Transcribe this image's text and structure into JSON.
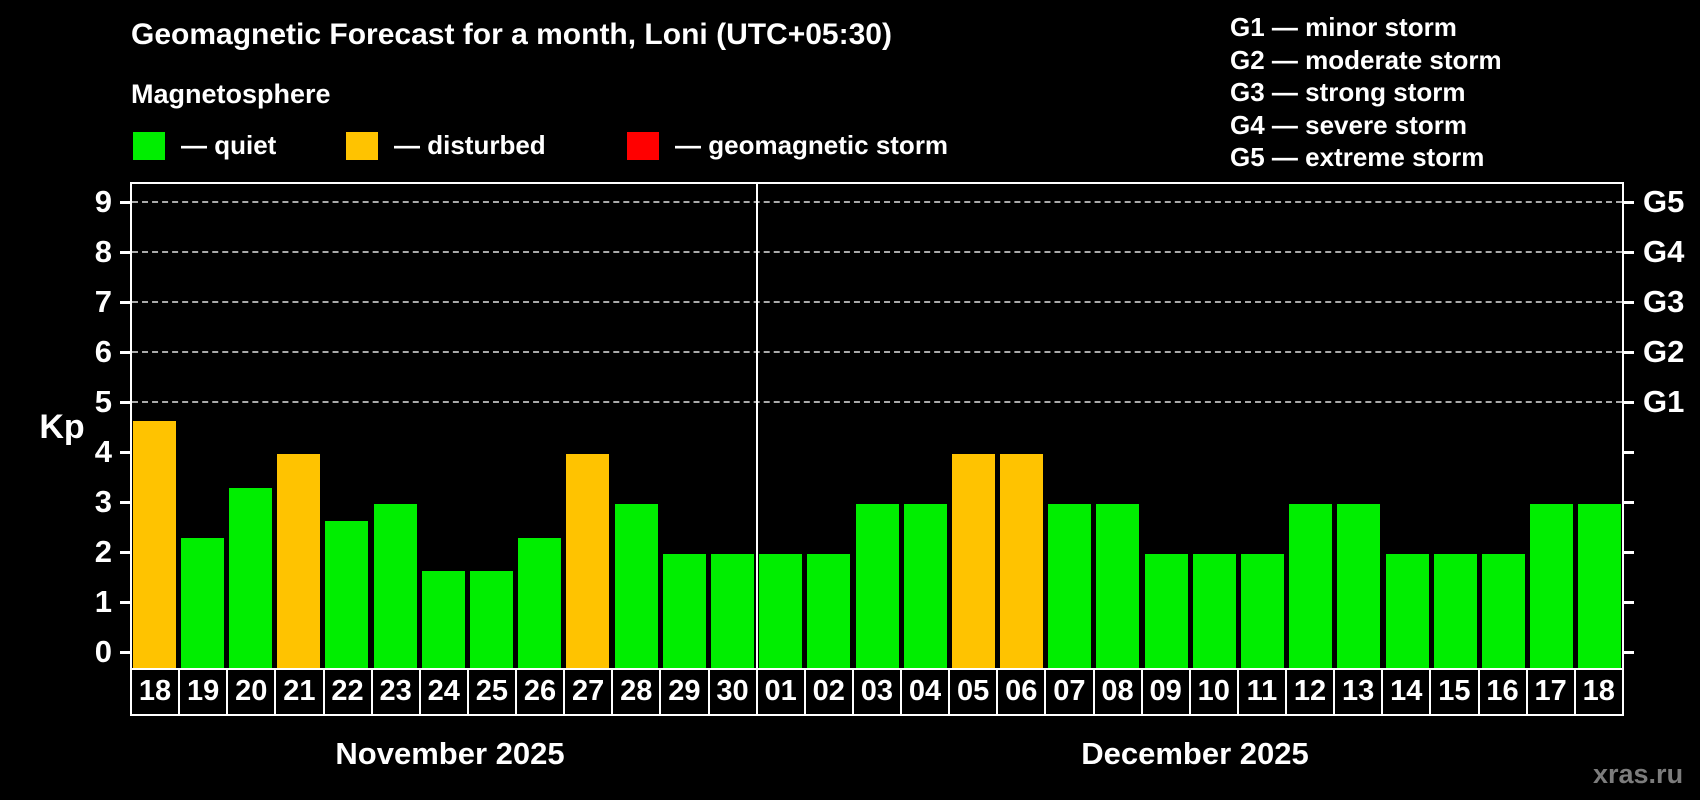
{
  "title": "Geomagnetic Forecast for a month, Loni (UTC+05:30)",
  "subtitle": "Magnetosphere",
  "legend": {
    "items": [
      {
        "key": "quiet",
        "label": "— quiet",
        "color": "#00ee00"
      },
      {
        "key": "disturbed",
        "label": "— disturbed",
        "color": "#ffc300"
      },
      {
        "key": "storm",
        "label": "— geomagnetic storm",
        "color": "#ff0000"
      }
    ]
  },
  "g_legend": [
    "G1 — minor storm",
    "G2 — moderate storm",
    "G3 — strong storm",
    "G4 — severe storm",
    "G5 — extreme storm"
  ],
  "watermark": "xras.ru",
  "chart_data": {
    "type": "bar",
    "title": "Geomagnetic Forecast for a month, Loni (UTC+05:30)",
    "ylabel": "Kp",
    "ylim": [
      0,
      9.4
    ],
    "yticks": [
      0,
      1,
      2,
      3,
      4,
      5,
      6,
      7,
      8,
      9
    ],
    "gridlines_at": [
      5,
      6,
      7,
      8,
      9
    ],
    "grid_style": "dashed horizontal lines at G-storm levels only",
    "legend_position": "top-left",
    "right_axis": [
      {
        "label": "G1",
        "kp": 5
      },
      {
        "label": "G2",
        "kp": 6
      },
      {
        "label": "G3",
        "kp": 7
      },
      {
        "label": "G4",
        "kp": 8
      },
      {
        "label": "G5",
        "kp": 9
      }
    ],
    "status_colors": {
      "quiet": "#00ee00",
      "disturbed": "#ffc300",
      "storm": "#ff0000"
    },
    "months": [
      {
        "label": "November 2025",
        "bars": [
          {
            "day": "18",
            "kp": 4.67,
            "status": "disturbed"
          },
          {
            "day": "19",
            "kp": 2.33,
            "status": "quiet"
          },
          {
            "day": "20",
            "kp": 3.33,
            "status": "quiet"
          },
          {
            "day": "21",
            "kp": 4.0,
            "status": "disturbed"
          },
          {
            "day": "22",
            "kp": 2.67,
            "status": "quiet"
          },
          {
            "day": "23",
            "kp": 3.0,
            "status": "quiet"
          },
          {
            "day": "24",
            "kp": 1.67,
            "status": "quiet"
          },
          {
            "day": "25",
            "kp": 1.67,
            "status": "quiet"
          },
          {
            "day": "26",
            "kp": 2.33,
            "status": "quiet"
          },
          {
            "day": "27",
            "kp": 4.0,
            "status": "disturbed"
          },
          {
            "day": "28",
            "kp": 3.0,
            "status": "quiet"
          },
          {
            "day": "29",
            "kp": 2.0,
            "status": "quiet"
          },
          {
            "day": "30",
            "kp": 2.0,
            "status": "quiet"
          }
        ]
      },
      {
        "label": "December 2025",
        "bars": [
          {
            "day": "01",
            "kp": 2.0,
            "status": "quiet"
          },
          {
            "day": "02",
            "kp": 2.0,
            "status": "quiet"
          },
          {
            "day": "03",
            "kp": 3.0,
            "status": "quiet"
          },
          {
            "day": "04",
            "kp": 3.0,
            "status": "quiet"
          },
          {
            "day": "05",
            "kp": 4.0,
            "status": "disturbed"
          },
          {
            "day": "06",
            "kp": 4.0,
            "status": "disturbed"
          },
          {
            "day": "07",
            "kp": 3.0,
            "status": "quiet"
          },
          {
            "day": "08",
            "kp": 3.0,
            "status": "quiet"
          },
          {
            "day": "09",
            "kp": 2.0,
            "status": "quiet"
          },
          {
            "day": "10",
            "kp": 2.0,
            "status": "quiet"
          },
          {
            "day": "11",
            "kp": 2.0,
            "status": "quiet"
          },
          {
            "day": "12",
            "kp": 3.0,
            "status": "quiet"
          },
          {
            "day": "13",
            "kp": 3.0,
            "status": "quiet"
          },
          {
            "day": "14",
            "kp": 2.0,
            "status": "quiet"
          },
          {
            "day": "15",
            "kp": 2.0,
            "status": "quiet"
          },
          {
            "day": "16",
            "kp": 2.0,
            "status": "quiet"
          },
          {
            "day": "17",
            "kp": 3.0,
            "status": "quiet"
          },
          {
            "day": "18",
            "kp": 3.0,
            "status": "quiet"
          }
        ]
      }
    ]
  }
}
